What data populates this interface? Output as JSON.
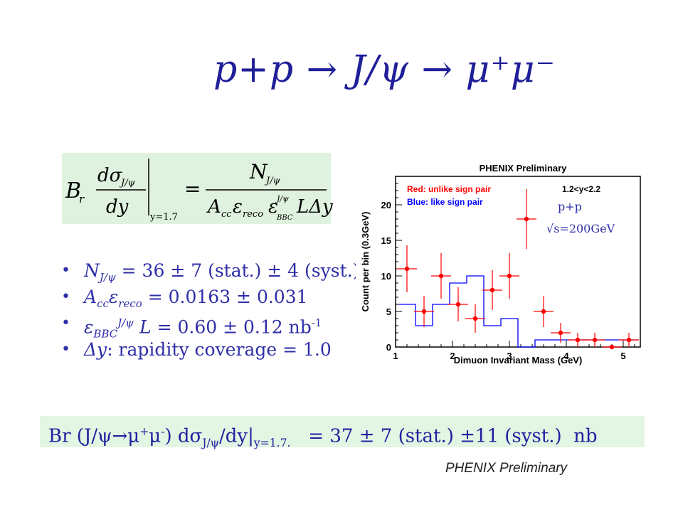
{
  "slide": {
    "title": "p+p → J/ψ → μ⁺μ⁻",
    "formula": {
      "br": "B",
      "br_sub": "r",
      "dsigma": "dσ",
      "dsigma_sub": "J/ψ",
      "dy": "dy",
      "eval_sub": "y=1.7",
      "equals": "=",
      "numerator": "N",
      "numerator_sub": "J/ψ",
      "denominator_a": "A",
      "denominator_a_sub": "cc",
      "denominator_eps": "ε",
      "denominator_eps_sub": "reco",
      "denominator_eps2": "ε",
      "denominator_eps2_sup": "J/ψ",
      "denominator_eps2_sub": "BBC",
      "denominator_rest": "LΔy"
    },
    "bullets": [
      {
        "sym": "N",
        "sub": "J/ψ",
        "sup": "",
        "text": " = 36 ± 7 (stat.) ± 4 (syst.)"
      },
      {
        "sym": "A",
        "sub": "cc",
        "sym2": "ε",
        "sub2": "reco",
        "text": " = 0.0163 ± 0.031"
      },
      {
        "sym": "ε",
        "sub": "BBC",
        "sup": "J/ψ",
        "sym2": "L",
        "text": " = 0.60 ± 0.12 nb",
        "tail_sup": "-1"
      },
      {
        "sym": "Δy",
        "text": ": rapidity coverage = 1.0"
      }
    ],
    "result": {
      "lhs": "Br (J/ψ→μ",
      "lhs_sup1": "+",
      "lhs_mid": "μ",
      "lhs_sup2": "-",
      "lhs_end": ") dσ",
      "lhs_sub1": "J/ψ",
      "lhs_tail": "/dy|",
      "lhs_sub2": "y=1.7.",
      "rhs": "   = 37 ± 7 (stat.) ±11 (syst.)  nb"
    },
    "footer_note": "PHENIX Preliminary"
  },
  "chart_data": {
    "type": "scatter",
    "title": "PHENIX Preliminary",
    "xlabel": "Dimuon Invariant Mass (GeV)",
    "ylabel": "Count per bin (0.3GeV)",
    "xlim": [
      1,
      5.3
    ],
    "ylim": [
      0,
      24
    ],
    "xticks": [
      1,
      2,
      3,
      4,
      5
    ],
    "yticks": [
      0,
      5,
      10,
      15,
      20
    ],
    "legend": [
      "Red: unlike sign pair",
      "Blue: like sign pair"
    ],
    "annotation_range": "1.2<y<2.2",
    "annotation_system": "p+p",
    "annotation_energy": "√s=200GeV",
    "colors": {
      "unlike": "#ff0000",
      "like": "#0000ff"
    },
    "series": [
      {
        "name": "Red: unlike sign pair",
        "x": [
          1.2,
          1.5,
          1.8,
          2.1,
          2.4,
          2.7,
          3.0,
          3.3,
          3.6,
          3.9,
          4.2,
          4.5,
          4.8,
          5.1
        ],
        "values": [
          11,
          5,
          10,
          6,
          4,
          8,
          10,
          18,
          5,
          2,
          1,
          1,
          0,
          1
        ],
        "yerr": [
          3.3,
          2.2,
          3.2,
          2.4,
          2.0,
          2.8,
          3.2,
          4.2,
          2.2,
          1.4,
          1.0,
          1.0,
          0,
          1.0
        ]
      },
      {
        "name": "Blue: like sign pair",
        "edges": [
          1.05,
          1.35,
          1.65,
          1.95,
          2.25,
          2.55,
          2.85,
          3.15,
          3.45,
          3.75,
          4.05,
          4.35,
          4.65,
          4.95,
          5.25
        ],
        "values": [
          6,
          3,
          6,
          9,
          10,
          3,
          4,
          0,
          1,
          1,
          1,
          1,
          1,
          1
        ]
      }
    ]
  }
}
